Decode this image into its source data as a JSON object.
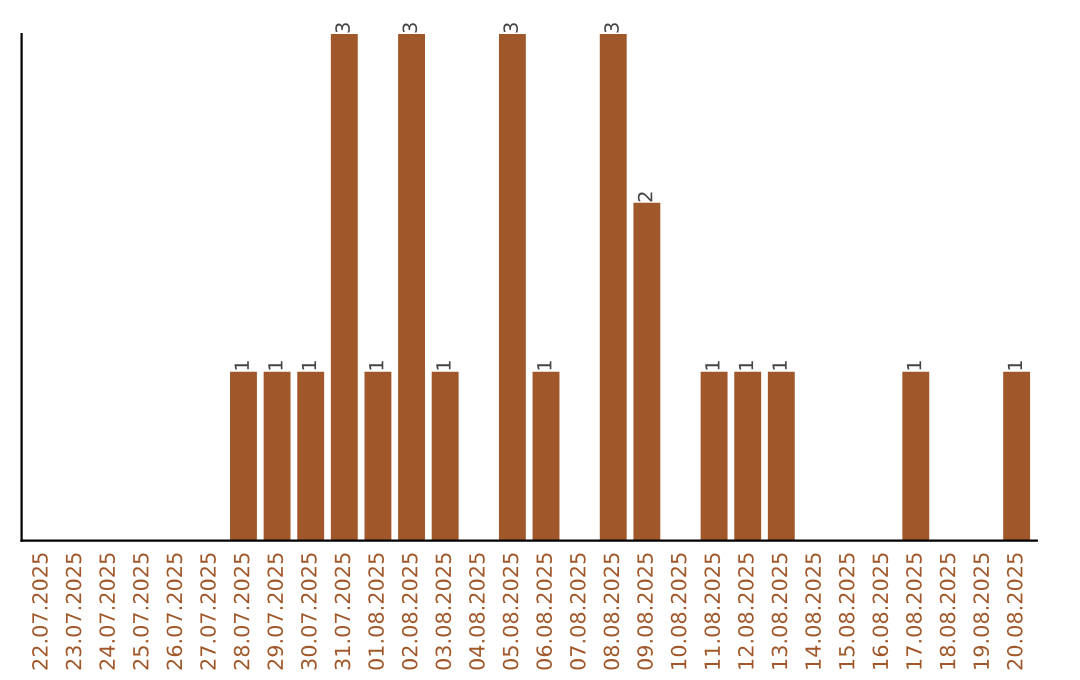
{
  "chart_data": {
    "type": "bar",
    "categories": [
      "22.07.2025",
      "23.07.2025",
      "24.07.2025",
      "25.07.2025",
      "26.07.2025",
      "27.07.2025",
      "28.07.2025",
      "29.07.2025",
      "30.07.2025",
      "31.07.2025",
      "01.08.2025",
      "02.08.2025",
      "03.08.2025",
      "04.08.2025",
      "05.08.2025",
      "06.08.2025",
      "07.08.2025",
      "08.08.2025",
      "09.08.2025",
      "10.08.2025",
      "11.08.2025",
      "12.08.2025",
      "13.08.2025",
      "14.08.2025",
      "15.08.2025",
      "16.08.2025",
      "17.08.2025",
      "18.08.2025",
      "19.08.2025",
      "20.08.2025"
    ],
    "values": [
      0,
      0,
      0,
      0,
      0,
      0,
      1,
      1,
      1,
      3,
      1,
      3,
      1,
      0,
      3,
      1,
      0,
      3,
      2,
      0,
      1,
      1,
      1,
      0,
      0,
      0,
      1,
      0,
      0,
      1
    ],
    "value_labels": [
      null,
      null,
      null,
      null,
      null,
      null,
      "1",
      "1",
      "1",
      "3",
      "1",
      "3",
      "1",
      null,
      "3",
      "1",
      null,
      "3",
      "2",
      null,
      "1",
      "1",
      "1",
      null,
      null,
      null,
      "1",
      null,
      null,
      "1"
    ],
    "color": "#a0582a",
    "grid": false,
    "legend": false
  }
}
